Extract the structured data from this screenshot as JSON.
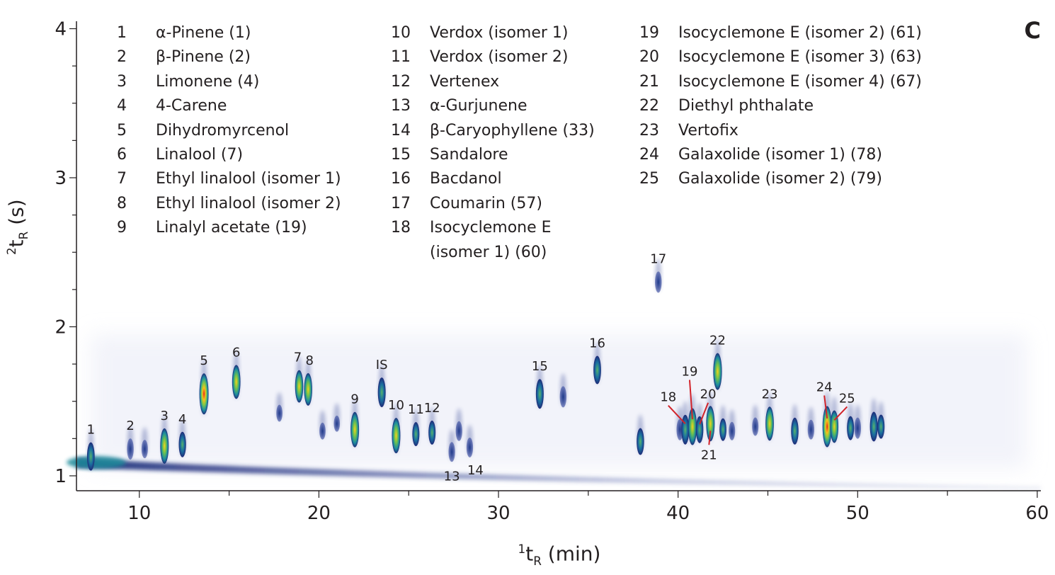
{
  "panel_label": "C",
  "chart_data": {
    "type": "scatter",
    "title": "",
    "xlabel_pre": "1",
    "xlabel_main": "t",
    "xlabel_sub": "R",
    "xlabel_post": " (min)",
    "ylabel_pre": "2",
    "ylabel_main": "t",
    "ylabel_sub": "R",
    "ylabel_post": " (s)",
    "xlim": [
      6.5,
      60.2
    ],
    "ylim": [
      0.9,
      4.05
    ],
    "xticks": [
      10,
      20,
      30,
      40,
      50,
      60
    ],
    "yticks": [
      1,
      2,
      3,
      4
    ],
    "grid": false,
    "legend": [
      {
        "num": "1",
        "name": "α-Pinene (1)"
      },
      {
        "num": "2",
        "name": "β-Pinene (2)"
      },
      {
        "num": "3",
        "name": "Limonene (4)"
      },
      {
        "num": "4",
        "name": "4-Carene"
      },
      {
        "num": "5",
        "name": "Dihydromyrcenol"
      },
      {
        "num": "6",
        "name": "Linalool (7)"
      },
      {
        "num": "7",
        "name": "Ethyl linalool (isomer 1)"
      },
      {
        "num": "8",
        "name": "Ethyl linalool (isomer 2)"
      },
      {
        "num": "9",
        "name": "Linalyl acetate (19)"
      },
      {
        "num": "10",
        "name": "Verdox (isomer 1)"
      },
      {
        "num": "11",
        "name": "Verdox (isomer 2)"
      },
      {
        "num": "12",
        "name": "Vertenex"
      },
      {
        "num": "13",
        "name": "α-Gurjunene"
      },
      {
        "num": "14",
        "name": "β-Caryophyllene (33)"
      },
      {
        "num": "15",
        "name": "Sandalore"
      },
      {
        "num": "16",
        "name": "Bacdanol"
      },
      {
        "num": "17",
        "name": "Coumarin (57)"
      },
      {
        "num": "18",
        "name": "Isocyclemone E",
        "name2": "(isomer 1) (60)"
      },
      {
        "num": "19",
        "name": "Isocyclemone E (isomer 2) (61)"
      },
      {
        "num": "20",
        "name": "Isocyclemone E (isomer 3) (63)"
      },
      {
        "num": "21",
        "name": "Isocyclemone E (isomer 4) (67)"
      },
      {
        "num": "22",
        "name": "Diethyl phthalate"
      },
      {
        "num": "23",
        "name": "Vertofix"
      },
      {
        "num": "24",
        "name": "Galaxolide (isomer 1) (78)"
      },
      {
        "num": "25",
        "name": "Galaxolide (isomer 2) (79)"
      }
    ],
    "peaks": [
      {
        "label": "1",
        "x": 7.3,
        "y": 1.13,
        "intensity": 0.55
      },
      {
        "label": "2",
        "x": 9.5,
        "y": 1.18,
        "intensity": 0.3
      },
      {
        "label": "3",
        "x": 11.4,
        "y": 1.2,
        "intensity": 0.8
      },
      {
        "label": "4",
        "x": 12.4,
        "y": 1.21,
        "intensity": 0.45
      },
      {
        "label": "5",
        "x": 13.6,
        "y": 1.55,
        "intensity": 1.0
      },
      {
        "label": "6",
        "x": 15.4,
        "y": 1.63,
        "intensity": 0.75
      },
      {
        "label": "7",
        "x": 18.9,
        "y": 1.6,
        "intensity": 0.7
      },
      {
        "label": "8",
        "x": 19.4,
        "y": 1.58,
        "intensity": 0.7
      },
      {
        "label": "9",
        "x": 22.0,
        "y": 1.31,
        "intensity": 0.8
      },
      {
        "label": "IS",
        "x": 23.5,
        "y": 1.56,
        "intensity": 0.6
      },
      {
        "label": "10",
        "x": 24.3,
        "y": 1.27,
        "intensity": 0.8
      },
      {
        "label": "11",
        "x": 25.4,
        "y": 1.28,
        "intensity": 0.4
      },
      {
        "label": "12",
        "x": 26.3,
        "y": 1.29,
        "intensity": 0.4
      },
      {
        "label": "13",
        "x": 27.4,
        "y": 1.16,
        "intensity": 0.25
      },
      {
        "label": "14",
        "x": 28.4,
        "y": 1.19,
        "intensity": 0.25
      },
      {
        "label": "15",
        "x": 32.3,
        "y": 1.55,
        "intensity": 0.6
      },
      {
        "label": "16",
        "x": 35.5,
        "y": 1.71,
        "intensity": 0.55
      },
      {
        "label": "17",
        "x": 38.9,
        "y": 2.3,
        "intensity": 0.3
      },
      {
        "label": "18",
        "x": 40.4,
        "y": 1.31,
        "intensity": 0.6
      },
      {
        "label": "19",
        "x": 40.8,
        "y": 1.33,
        "intensity": 0.85
      },
      {
        "label": "20",
        "x": 41.2,
        "y": 1.31,
        "intensity": 0.5
      },
      {
        "label": "21",
        "x": 41.8,
        "y": 1.35,
        "intensity": 0.8
      },
      {
        "label": "22",
        "x": 42.2,
        "y": 1.7,
        "intensity": 0.85
      },
      {
        "label": "23",
        "x": 45.1,
        "y": 1.35,
        "intensity": 0.75
      },
      {
        "label": "24",
        "x": 48.3,
        "y": 1.33,
        "intensity": 1.0
      },
      {
        "label": "25",
        "x": 48.7,
        "y": 1.33,
        "intensity": 0.7
      }
    ],
    "unlabeled_peaks": [
      {
        "x": 10.3,
        "y": 1.18,
        "intensity": 0.2
      },
      {
        "x": 17.8,
        "y": 1.42,
        "intensity": 0.15
      },
      {
        "x": 20.2,
        "y": 1.3,
        "intensity": 0.15
      },
      {
        "x": 21.0,
        "y": 1.35,
        "intensity": 0.12
      },
      {
        "x": 27.8,
        "y": 1.3,
        "intensity": 0.25
      },
      {
        "x": 33.6,
        "y": 1.53,
        "intensity": 0.3
      },
      {
        "x": 37.9,
        "y": 1.23,
        "intensity": 0.5
      },
      {
        "x": 40.1,
        "y": 1.31,
        "intensity": 0.3
      },
      {
        "x": 42.5,
        "y": 1.31,
        "intensity": 0.35
      },
      {
        "x": 43.0,
        "y": 1.3,
        "intensity": 0.2
      },
      {
        "x": 44.3,
        "y": 1.33,
        "intensity": 0.2
      },
      {
        "x": 46.5,
        "y": 1.3,
        "intensity": 0.5
      },
      {
        "x": 47.4,
        "y": 1.31,
        "intensity": 0.25
      },
      {
        "x": 49.6,
        "y": 1.32,
        "intensity": 0.4
      },
      {
        "x": 50.0,
        "y": 1.32,
        "intensity": 0.3
      },
      {
        "x": 50.9,
        "y": 1.33,
        "intensity": 0.6
      },
      {
        "x": 51.3,
        "y": 1.33,
        "intensity": 0.4
      }
    ],
    "pointer_lines": [
      "18",
      "19",
      "20",
      "21",
      "24",
      "25"
    ]
  }
}
